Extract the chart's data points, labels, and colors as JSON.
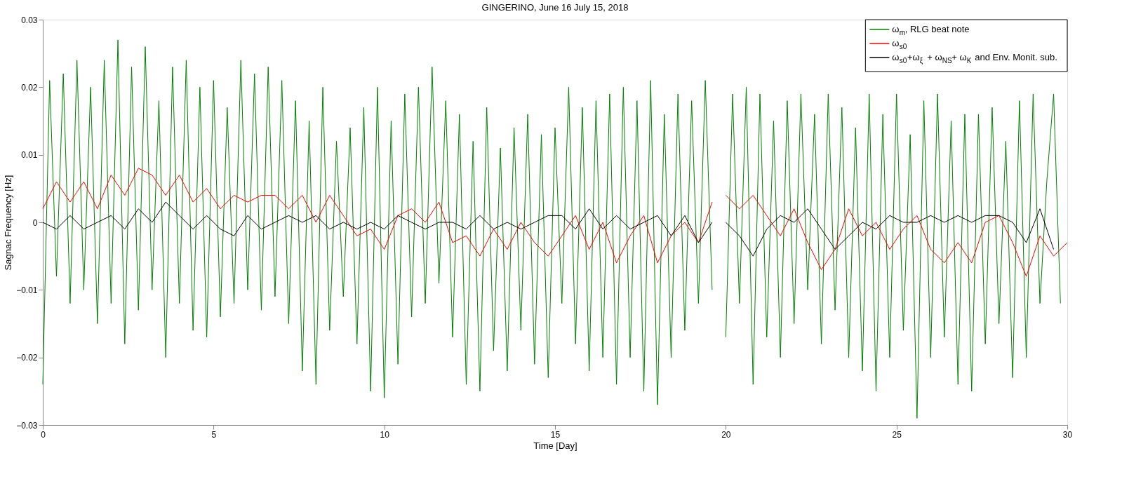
{
  "chart_data": {
    "type": "line",
    "title": "GINGERINO, June 16 July 15, 2018",
    "xlabel": "Time [Day]",
    "ylabel": "Sagnac Frequency [Hz]",
    "xlim": [
      0,
      30
    ],
    "xticks": [
      0,
      5,
      10,
      15,
      20,
      25,
      30
    ],
    "ylim": [
      -0.03,
      0.03
    ],
    "yticks": [
      -0.03,
      -0.02,
      -0.01,
      0,
      0.01,
      0.02,
      0.03
    ],
    "grid": false,
    "legend": "top right",
    "marker": "none",
    "line_style": "solid",
    "series": [
      {
        "name": "ω$_{m}$, RLG beat note",
        "color": "#008000",
        "x": [
          0,
          0.2,
          0.4,
          0.6,
          0.8,
          1.0,
          1.2,
          1.4,
          1.6,
          1.8,
          2.0,
          2.2,
          2.4,
          2.6,
          2.8,
          3.0,
          3.2,
          3.4,
          3.6,
          3.8,
          4.0,
          4.2,
          4.4,
          4.6,
          4.8,
          5.0,
          5.2,
          5.4,
          5.6,
          5.8,
          6.0,
          6.2,
          6.4,
          6.6,
          6.8,
          7.0,
          7.2,
          7.4,
          7.6,
          7.8,
          8.0,
          8.2,
          8.4,
          8.6,
          8.8,
          9.0,
          9.2,
          9.4,
          9.6,
          9.8,
          10.0,
          10.2,
          10.4,
          10.6,
          10.8,
          11.0,
          11.2,
          11.4,
          11.6,
          11.8,
          12.0,
          12.2,
          12.4,
          12.6,
          12.8,
          13.0,
          13.2,
          13.4,
          13.6,
          13.8,
          14.0,
          14.2,
          14.4,
          14.6,
          14.8,
          15.0,
          15.2,
          15.4,
          15.6,
          15.8,
          16.0,
          16.2,
          16.4,
          16.6,
          16.8,
          17.0,
          17.2,
          17.4,
          17.6,
          17.8,
          18.0,
          18.2,
          18.4,
          18.6,
          18.8,
          19.0,
          19.2,
          19.4,
          19.6,
          19.8,
          20.0,
          20.2,
          20.4,
          20.6,
          20.8,
          21.0,
          21.2,
          21.4,
          21.6,
          21.8,
          22.0,
          22.2,
          22.4,
          22.6,
          22.8,
          23.0,
          23.2,
          23.4,
          23.6,
          23.8,
          24.0,
          24.2,
          24.4,
          24.6,
          24.8,
          25.0,
          25.2,
          25.4,
          25.6,
          25.8,
          26.0,
          26.2,
          26.4,
          26.6,
          26.8,
          27.0,
          27.2,
          27.4,
          27.6,
          27.8,
          28.0,
          28.2,
          28.4,
          28.6,
          28.8,
          29.0,
          29.2,
          29.4,
          29.6,
          29.8
        ],
        "values": [
          -0.024,
          0.021,
          -0.008,
          0.022,
          -0.012,
          0.024,
          -0.01,
          0.02,
          -0.015,
          0.024,
          -0.012,
          0.027,
          -0.018,
          0.023,
          -0.013,
          0.026,
          -0.01,
          0.018,
          -0.02,
          0.023,
          -0.012,
          0.024,
          -0.016,
          0.02,
          -0.017,
          0.021,
          -0.014,
          0.017,
          -0.012,
          0.024,
          -0.01,
          0.022,
          -0.013,
          0.023,
          -0.011,
          0.021,
          -0.015,
          0.018,
          -0.022,
          0.015,
          -0.024,
          0.02,
          -0.016,
          0.012,
          -0.011,
          0.014,
          -0.018,
          0.017,
          -0.025,
          0.02,
          -0.026,
          0.015,
          -0.021,
          0.019,
          -0.014,
          0.02,
          -0.012,
          0.023,
          -0.009,
          0.018,
          -0.017,
          0.016,
          -0.024,
          0.012,
          -0.025,
          0.017,
          -0.019,
          0.011,
          -0.022,
          0.014,
          -0.016,
          0.016,
          -0.021,
          0.013,
          -0.023,
          0.014,
          -0.012,
          0.02,
          -0.018,
          0.017,
          -0.022,
          0.018,
          -0.02,
          0.019,
          -0.024,
          0.02,
          -0.02,
          0.018,
          -0.025,
          0.021,
          -0.027,
          0.016,
          -0.02,
          0.019,
          -0.016,
          0.018,
          -0.012,
          0.021,
          -0.01,
          null,
          -0.017,
          0.019,
          -0.012,
          0.02,
          -0.024,
          0.019,
          -0.017,
          0.015,
          -0.02,
          0.018,
          -0.015,
          0.019,
          -0.01,
          0.016,
          -0.018,
          0.019,
          -0.013,
          0.017,
          -0.02,
          0.014,
          -0.022,
          0.019,
          -0.025,
          0.016,
          -0.02,
          0.019,
          -0.016,
          0.013,
          -0.029,
          0.018,
          -0.02,
          0.019,
          -0.017,
          0.015,
          -0.024,
          0.016,
          -0.025,
          0.016,
          -0.018,
          0.017,
          -0.015,
          0.012,
          -0.023,
          0.018,
          -0.02,
          0.019,
          -0.012,
          0.006,
          0.019,
          -0.012
        ]
      },
      {
        "name": "ω$_{s0}$",
        "color": "#ff0000",
        "x": [
          0,
          0.4,
          0.8,
          1.2,
          1.6,
          2.0,
          2.4,
          2.8,
          3.2,
          3.6,
          4.0,
          4.4,
          4.8,
          5.2,
          5.6,
          6.0,
          6.4,
          6.8,
          7.2,
          7.6,
          8.0,
          8.4,
          8.8,
          9.2,
          9.6,
          10.0,
          10.4,
          10.8,
          11.2,
          11.6,
          12.0,
          12.4,
          12.8,
          13.2,
          13.6,
          14.0,
          14.4,
          14.8,
          15.2,
          15.6,
          16.0,
          16.4,
          16.8,
          17.2,
          17.6,
          18.0,
          18.4,
          18.8,
          19.2,
          19.6,
          19.8,
          20.0,
          20.4,
          20.8,
          21.2,
          21.6,
          22.0,
          22.4,
          22.8,
          23.2,
          23.6,
          24.0,
          24.4,
          24.8,
          25.2,
          25.6,
          26.0,
          26.4,
          26.8,
          27.2,
          27.6,
          28.0,
          28.4,
          28.8,
          29.2,
          29.6,
          30.0
        ],
        "values": [
          0.002,
          0.006,
          0.003,
          0.006,
          0.002,
          0.007,
          0.004,
          0.008,
          0.007,
          0.004,
          0.007,
          0.003,
          0.005,
          0.002,
          0.004,
          0.003,
          0.004,
          0.004,
          0.002,
          0.004,
          0.0,
          0.004,
          0.001,
          -0.002,
          -0.001,
          -0.004,
          0.001,
          0.002,
          0.0,
          0.003,
          -0.003,
          -0.002,
          -0.005,
          -0.001,
          -0.004,
          0.0,
          -0.003,
          -0.005,
          -0.002,
          0.001,
          -0.004,
          0.0,
          -0.006,
          -0.002,
          0.001,
          -0.006,
          -0.002,
          0.0,
          -0.003,
          0.003,
          null,
          0.004,
          0.002,
          0.004,
          0.001,
          -0.002,
          0.002,
          -0.003,
          -0.007,
          -0.004,
          0.002,
          -0.002,
          0.0,
          -0.004,
          -0.001,
          0.001,
          -0.004,
          -0.006,
          -0.003,
          -0.006,
          0.0,
          0.001,
          -0.003,
          -0.008,
          -0.002,
          -0.005,
          -0.003
        ]
      },
      {
        "name": "ω$_{s0}$+ω$_{ξ}$ + ω$_{NS}$+ ω$_{K}$ and Env. Monit. sub.",
        "color": "#000000",
        "x": [
          0,
          0.4,
          0.8,
          1.2,
          1.6,
          2.0,
          2.4,
          2.8,
          3.2,
          3.6,
          4.0,
          4.4,
          4.8,
          5.2,
          5.6,
          6.0,
          6.4,
          6.8,
          7.2,
          7.6,
          8.0,
          8.4,
          8.8,
          9.2,
          9.6,
          10.0,
          10.4,
          10.8,
          11.2,
          11.6,
          12.0,
          12.4,
          12.8,
          13.2,
          13.6,
          14.0,
          14.4,
          14.8,
          15.2,
          15.6,
          16.0,
          16.4,
          16.8,
          17.2,
          17.6,
          18.0,
          18.4,
          18.8,
          19.2,
          19.6,
          19.8,
          20.0,
          20.4,
          20.8,
          21.2,
          21.6,
          22.0,
          22.4,
          22.8,
          23.2,
          23.6,
          24.0,
          24.4,
          24.8,
          25.2,
          25.6,
          26.0,
          26.4,
          26.8,
          27.2,
          27.6,
          28.0,
          28.4,
          28.8,
          29.2,
          29.6
        ],
        "values": [
          0.0,
          -0.001,
          0.001,
          -0.001,
          0.0,
          0.001,
          -0.001,
          0.002,
          0.0,
          0.003,
          0.001,
          -0.001,
          0.001,
          -0.001,
          -0.002,
          0.001,
          -0.001,
          0.0,
          0.001,
          0.0,
          0.001,
          -0.001,
          0.0,
          -0.001,
          0.0,
          -0.001,
          0.001,
          0.0,
          -0.001,
          0.0,
          0.0,
          -0.001,
          0.001,
          -0.001,
          0.0,
          -0.001,
          0.0,
          0.001,
          0.001,
          -0.001,
          0.002,
          -0.001,
          0.001,
          -0.001,
          0.0,
          0.001,
          -0.002,
          0.001,
          -0.003,
          0.0,
          null,
          0.0,
          -0.002,
          -0.005,
          -0.001,
          0.001,
          0.0,
          0.002,
          -0.001,
          -0.004,
          -0.002,
          0.0,
          -0.001,
          0.001,
          0.0,
          0.0,
          0.001,
          0.0,
          0.001,
          0.0,
          0.001,
          0.001,
          0.0,
          -0.003,
          0.002,
          -0.004
        ]
      }
    ]
  }
}
